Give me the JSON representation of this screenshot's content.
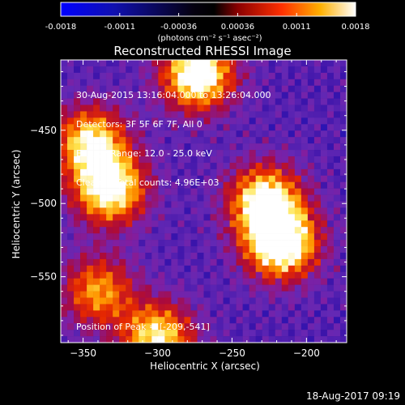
{
  "chart_data": [
    {
      "type": "colorbar",
      "ticks": [
        "-0.0018",
        "-0.0011",
        "-0.00036",
        "0.00036",
        "0.0011",
        "0.0018"
      ],
      "unit_label": "(photons cm⁻² s⁻¹ asec⁻²)",
      "range": [
        -0.0018,
        0.0018
      ],
      "colors": [
        "#0000ff",
        "#000000",
        "#8a0000",
        "#ff3000",
        "#ffb000",
        "#ffffff"
      ]
    },
    {
      "type": "heatmap",
      "title": "Reconstructed RHESSI Image",
      "xlabel": "Heliocentric X (arcsec)",
      "ylabel": "Heliocentric Y (arcsec)",
      "xlim": [
        -365,
        -173
      ],
      "ylim": [
        -595,
        -402
      ],
      "xticks": [
        -350,
        -300,
        -250,
        -200
      ],
      "yticks": [
        -450,
        -500,
        -550
      ],
      "annotations": [
        "30-Aug-2015 13:16:04.000 to 13:26:04.000",
        "Detectors: 3F 5F 6F 7F, All 0",
        "Energy Range: 12.0 - 25.0 keV",
        "Clean     Total counts: 4.96E+03"
      ],
      "peak_label": "Position of Peak = [-209,-541]",
      "emission_sources": [
        {
          "x": -217,
          "y": -527,
          "peak": 0.95
        },
        {
          "x": -228,
          "y": -498,
          "peak": 0.78
        },
        {
          "x": -332,
          "y": -490,
          "peak": 0.82
        },
        {
          "x": -345,
          "y": -458,
          "peak": 0.7
        },
        {
          "x": -273,
          "y": -412,
          "peak": 0.88
        },
        {
          "x": -300,
          "y": -592,
          "peak": 0.72
        },
        {
          "x": -340,
          "y": -560,
          "peak": 0.55
        }
      ]
    }
  ],
  "footer": {
    "timestamp": "18-Aug-2017 09:19"
  }
}
